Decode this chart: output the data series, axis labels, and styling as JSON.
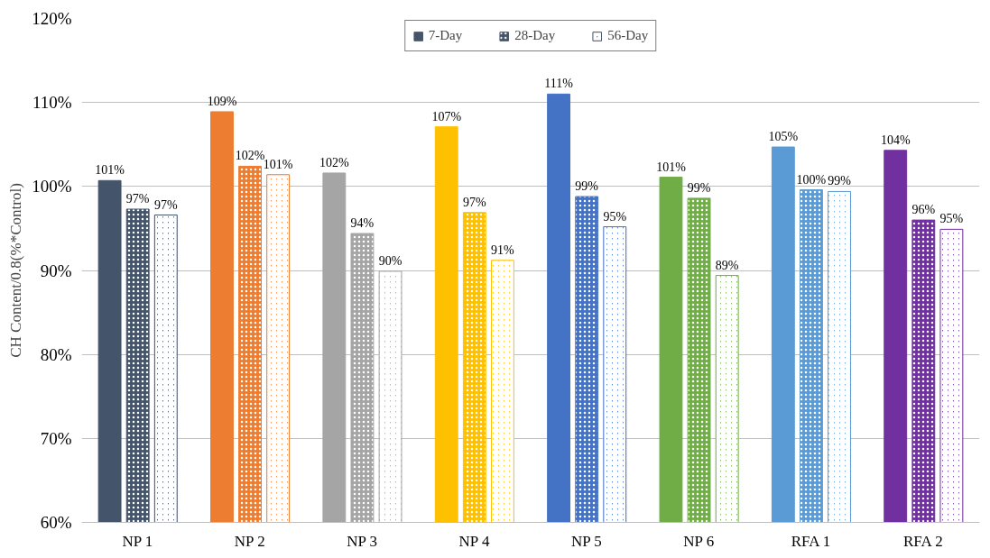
{
  "chart_data": {
    "type": "bar",
    "ylabel": "CH Content/0.8(%*Control)",
    "categories": [
      "NP 1",
      "NP 2",
      "NP 3",
      "NP 4",
      "NP 5",
      "NP 6",
      "RFA 1",
      "RFA 2"
    ],
    "series": [
      {
        "name": "7-Day",
        "colors": [
          "#44546a",
          "#ed7d31",
          "#a5a5a5",
          "#ffc000",
          "#4472c4",
          "#70ad47",
          "#5b9bd5",
          "#7030a0"
        ],
        "values": [
          100.7,
          108.9,
          101.6,
          107.1,
          111.0,
          101.1,
          104.7,
          104.3
        ],
        "value_labels": [
          "101%",
          "109%",
          "102%",
          "107%",
          "111%",
          "101%",
          "105%",
          "104%"
        ]
      },
      {
        "name": "28-Day",
        "colors": [
          "#44546a",
          "#ed7d31",
          "#a5a5a5",
          "#ffc000",
          "#4472c4",
          "#70ad47",
          "#5b9bd5",
          "#7030a0"
        ],
        "values": [
          97.3,
          102.4,
          94.4,
          96.9,
          98.8,
          98.6,
          99.6,
          96.0
        ],
        "value_labels": [
          "97%",
          "102%",
          "94%",
          "97%",
          "99%",
          "99%",
          "100%",
          "96%"
        ]
      },
      {
        "name": "56-Day",
        "colors": [
          "#44546a",
          "#ed7d31",
          "#a5a5a5",
          "#ffc000",
          "#4472c4",
          "#70ad47",
          "#5b9bd5",
          "#7030a0"
        ],
        "values": [
          96.6,
          101.4,
          89.9,
          91.2,
          95.2,
          89.4,
          99.4,
          94.9
        ],
        "value_labels": [
          "97%",
          "101%",
          "90%",
          "91%",
          "95%",
          "89%",
          "99%",
          "95%"
        ]
      }
    ],
    "ylim": [
      60,
      120
    ],
    "yticks": [
      {
        "value": 60,
        "label": "60%"
      },
      {
        "value": 70,
        "label": "70%"
      },
      {
        "value": 80,
        "label": "80%"
      },
      {
        "value": 90,
        "label": "90%"
      },
      {
        "value": 100,
        "label": "100%"
      },
      {
        "value": 110,
        "label": "110%"
      },
      {
        "value": 120,
        "label": "120%"
      }
    ],
    "grid": "y",
    "legend": "top"
  }
}
